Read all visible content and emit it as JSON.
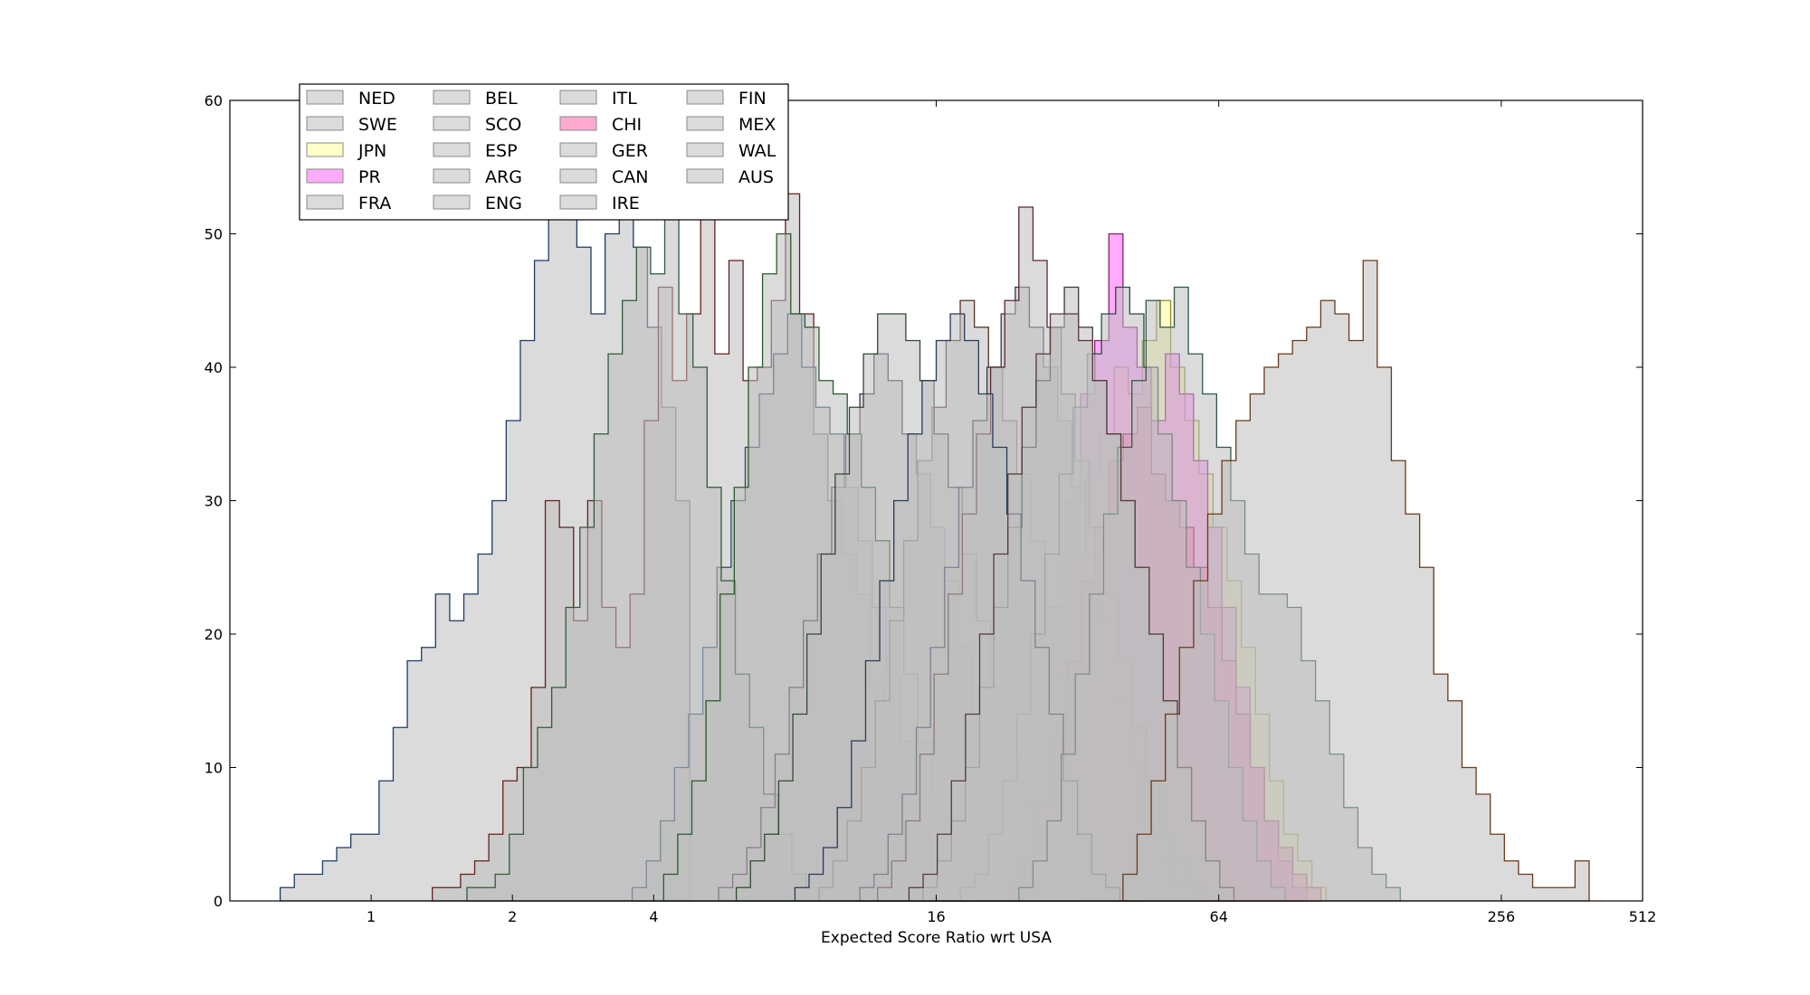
{
  "chart_data": {
    "type": "histogram",
    "xscale": "log2",
    "xlabel": "Expected Score Ratio wrt USA",
    "xlim": [
      0.5,
      512
    ],
    "ylim": [
      0,
      60
    ],
    "grid": false,
    "legend_position": "top-left",
    "x_ticks": [
      {
        "value": 1,
        "label": "1"
      },
      {
        "value": 2,
        "label": "2"
      },
      {
        "value": 4,
        "label": "4"
      },
      {
        "value": 16,
        "label": "16"
      },
      {
        "value": 64,
        "label": "64"
      },
      {
        "value": 256,
        "label": "256"
      },
      {
        "value": 512,
        "label": "512"
      }
    ],
    "y_ticks": [
      {
        "value": 0,
        "label": "0"
      },
      {
        "value": 10,
        "label": "10"
      },
      {
        "value": 20,
        "label": "20"
      },
      {
        "value": 30,
        "label": "30"
      },
      {
        "value": 40,
        "label": "40"
      },
      {
        "value": 50,
        "label": "50"
      },
      {
        "value": 60,
        "label": "60"
      }
    ],
    "series": [
      {
        "name": "NED",
        "fill": "#bdbdbd",
        "edge": "#1f3b66",
        "x_start": 0.64,
        "bin_log2_width": 0.1,
        "values": [
          1,
          2,
          2,
          3,
          4,
          5,
          5,
          9,
          13,
          18,
          19,
          23,
          21,
          23,
          26,
          30,
          36,
          42,
          48,
          56,
          52,
          49,
          44,
          50,
          56,
          49,
          43,
          37,
          30
        ]
      },
      {
        "name": "SWE",
        "fill": "#bdbdbd",
        "edge": "#6a1e1e",
        "x_start": 1.35,
        "bin_log2_width": 0.1,
        "values": [
          1,
          1,
          2,
          3,
          5,
          9,
          10,
          16,
          30,
          28,
          21,
          30,
          22,
          19,
          23,
          36,
          46,
          39,
          44,
          52,
          41,
          48,
          39,
          40,
          45,
          53,
          44,
          35,
          30,
          26,
          23,
          16,
          14
        ]
      },
      {
        "name": "JPN",
        "fill": "#ffff99",
        "edge": "#8a8a2a",
        "x_start": 22.0,
        "bin_log2_width": 0.1,
        "values": [
          2,
          5,
          10,
          18,
          25,
          30,
          32,
          35,
          40,
          38,
          42,
          45,
          40,
          36,
          32,
          28,
          24,
          19,
          14,
          9,
          5,
          3,
          1
        ]
      },
      {
        "name": "PR",
        "fill": "#ff66ff",
        "edge": "#8a1f6a",
        "x_start": 20.0,
        "bin_log2_width": 0.1,
        "values": [
          1,
          3,
          6,
          10,
          15,
          22,
          30,
          38,
          42,
          50,
          43,
          40,
          36,
          41,
          38,
          33,
          28,
          22,
          16,
          10,
          6,
          3,
          1
        ]
      },
      {
        "name": "FRA",
        "fill": "#bdbdbd",
        "edge": "#2a4a6a",
        "x_start": 3.6,
        "bin_log2_width": 0.1,
        "values": [
          1,
          3,
          6,
          10,
          14,
          19,
          25,
          30,
          34,
          38,
          41,
          44,
          40,
          37,
          35,
          31,
          27,
          22,
          17,
          12,
          8,
          5,
          3,
          1
        ]
      },
      {
        "name": "BEL",
        "fill": "#bdbdbd",
        "edge": "#2e5b3a",
        "x_start": 1.6,
        "bin_log2_width": 0.1,
        "values": [
          1,
          1,
          2,
          5,
          10,
          13,
          16,
          22,
          28,
          35,
          41,
          45,
          49,
          47,
          52,
          44,
          40,
          31,
          24,
          17,
          13,
          8,
          5,
          2,
          1
        ]
      },
      {
        "name": "SCO",
        "fill": "#bdbdbd",
        "edge": "#4a2a55",
        "x_start": 5.5,
        "bin_log2_width": 0.1,
        "values": [
          1,
          2,
          4,
          7,
          11,
          16,
          21,
          26,
          31,
          35,
          38,
          41,
          39,
          35,
          32,
          28,
          24,
          19,
          14,
          10,
          6,
          3,
          1
        ]
      },
      {
        "name": "ESP",
        "fill": "#bdbdbd",
        "edge": "#2a5a2a",
        "x_start": 4.2,
        "bin_log2_width": 0.1,
        "values": [
          2,
          5,
          9,
          15,
          23,
          31,
          40,
          47,
          50,
          44,
          43,
          39,
          38,
          35,
          31,
          27,
          22,
          17,
          12,
          8,
          5,
          3,
          1
        ]
      },
      {
        "name": "ARG",
        "fill": "#bdbdbd",
        "edge": "#553020",
        "x_start": 9.0,
        "bin_log2_width": 0.1,
        "values": [
          1,
          3,
          6,
          10,
          15,
          21,
          27,
          33,
          37,
          42,
          45,
          43,
          40,
          36,
          32,
          27,
          22,
          17,
          12,
          8,
          5,
          2,
          1
        ]
      },
      {
        "name": "ENG",
        "fill": "#bdbdbd",
        "edge": "#304a30",
        "x_start": 6.0,
        "bin_log2_width": 0.1,
        "values": [
          1,
          3,
          5,
          9,
          14,
          20,
          26,
          32,
          37,
          41,
          44,
          44,
          42,
          39,
          35,
          31,
          26,
          21,
          16,
          11,
          7,
          4,
          2,
          1
        ]
      },
      {
        "name": "ITL",
        "fill": "#bdbdbd",
        "edge": "#2a3a5a",
        "x_start": 11.0,
        "bin_log2_width": 0.1,
        "values": [
          1,
          2,
          5,
          8,
          13,
          19,
          25,
          31,
          36,
          40,
          44,
          46,
          43,
          40,
          36,
          31,
          26,
          21,
          15,
          10,
          6,
          3,
          1
        ]
      },
      {
        "name": "CHI",
        "fill": "#ff66aa",
        "edge": "#8a1f4a",
        "x_start": 23.0,
        "bin_log2_width": 0.1,
        "values": [
          1,
          3,
          7,
          12,
          18,
          24,
          28,
          33,
          35,
          37,
          32,
          30,
          28,
          25,
          22,
          18,
          14,
          10,
          6,
          4,
          2,
          1
        ]
      },
      {
        "name": "GER",
        "fill": "#bdbdbd",
        "edge": "#5a2a2a",
        "x_start": 12.0,
        "bin_log2_width": 0.1,
        "values": [
          1,
          3,
          6,
          11,
          17,
          23,
          29,
          35,
          40,
          45,
          52,
          48,
          43,
          38,
          33,
          28,
          23,
          18,
          13,
          9,
          5,
          3,
          1
        ]
      },
      {
        "name": "CAN",
        "fill": "#bdbdbd",
        "edge": "#2a4a4a",
        "x_start": 18.0,
        "bin_log2_width": 0.1,
        "values": [
          1,
          2,
          5,
          9,
          14,
          20,
          26,
          32,
          37,
          41,
          44,
          46,
          44,
          40,
          35,
          30,
          25,
          20,
          15,
          10,
          6,
          3,
          1
        ]
      },
      {
        "name": "IRE",
        "fill": "#bdbdbd",
        "edge": "#3a3a3a",
        "x_start": 15.0,
        "bin_log2_width": 0.1,
        "values": [
          1,
          3,
          6,
          10,
          16,
          22,
          28,
          34,
          39,
          43,
          46,
          43,
          39,
          35,
          30,
          25,
          20,
          15,
          10,
          6,
          3,
          1
        ]
      },
      {
        "name": "FIN",
        "fill": "#bdbdbd",
        "edge": "#2a3a5a",
        "x_start": 8.0,
        "bin_log2_width": 0.1,
        "values": [
          1,
          2,
          4,
          7,
          12,
          18,
          24,
          30,
          35,
          39,
          42,
          44,
          42,
          38,
          34,
          29,
          24,
          19,
          14,
          9,
          5,
          2,
          1
        ]
      },
      {
        "name": "MEX",
        "fill": "#bdbdbd",
        "edge": "#2e5a44",
        "x_start": 24.0,
        "bin_log2_width": 0.1,
        "values": [
          1,
          3,
          6,
          11,
          17,
          23,
          29,
          34,
          39,
          45,
          43,
          46,
          41,
          38,
          34,
          30,
          26,
          23,
          23,
          22,
          18,
          15,
          11,
          7,
          4,
          2,
          1
        ]
      },
      {
        "name": "WAL",
        "fill": "#bdbdbd",
        "edge": "#553a3a",
        "x_start": 14.0,
        "bin_log2_width": 0.1,
        "values": [
          1,
          2,
          5,
          9,
          14,
          20,
          26,
          32,
          37,
          41,
          44,
          44,
          42,
          39,
          35,
          30,
          25,
          20,
          15,
          10,
          6,
          3,
          1
        ]
      },
      {
        "name": "AUS",
        "fill": "#bdbdbd",
        "edge": "#6a3a1a",
        "x_start": 40.0,
        "bin_log2_width": 0.1,
        "values": [
          2,
          5,
          9,
          14,
          19,
          24,
          29,
          33,
          36,
          38,
          40,
          41,
          42,
          43,
          45,
          44,
          42,
          48,
          40,
          33,
          29,
          25,
          17,
          15,
          10,
          8,
          5,
          3,
          2,
          1,
          1,
          1,
          3
        ]
      }
    ]
  }
}
